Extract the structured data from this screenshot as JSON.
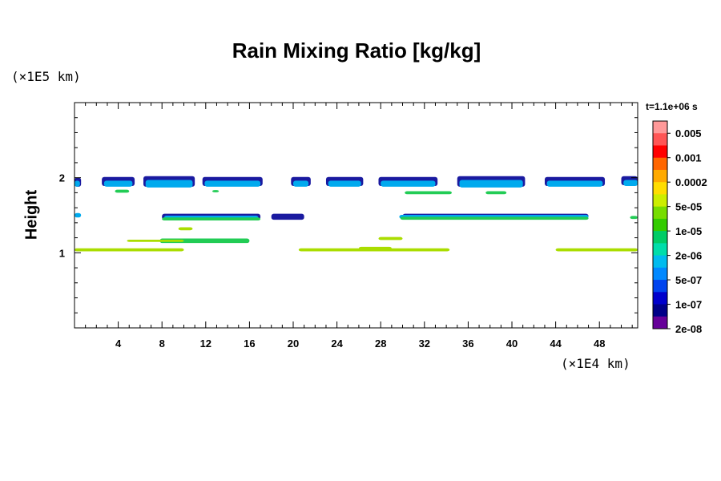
{
  "chart_data": {
    "type": "heatmap",
    "title": "Rain Mixing Ratio [kg/kg]",
    "ylabel": "Height",
    "xlabel": "",
    "x_unit": "(×1E4 km)",
    "y_unit": "(×1E5 km)",
    "time_label": "t=1.1e+06 s",
    "xlim": [
      0,
      51.5
    ],
    "ylim": [
      0,
      3
    ],
    "x_ticks": [
      4,
      8,
      12,
      16,
      20,
      24,
      28,
      32,
      36,
      40,
      44,
      48
    ],
    "x_tick_labels": [
      "4",
      "8",
      "12",
      "16",
      "20",
      "24",
      "28",
      "32",
      "36",
      "40",
      "44",
      "48"
    ],
    "y_ticks": [
      1,
      2
    ],
    "y_tick_labels": [
      "1",
      "2"
    ],
    "colorbar": {
      "labels": [
        "0.005",
        "0.001",
        "0.0002",
        "5e-05",
        "1e-05",
        "2e-06",
        "5e-07",
        "1e-07",
        "2e-08"
      ],
      "colors": [
        "#ff9999",
        "#ff5555",
        "#ff0000",
        "#ff6600",
        "#ffaa00",
        "#ffdd00",
        "#ccee00",
        "#77dd00",
        "#33cc00",
        "#00cc66",
        "#00ddaa",
        "#00bbee",
        "#0088ff",
        "#0044ee",
        "#0000cc",
        "#000088",
        "#660099"
      ]
    },
    "series": [
      {
        "level": "2e-08",
        "color": "#1a1aa0",
        "bands": [
          {
            "x0": 0.0,
            "x1": 0.6,
            "y": 1.94,
            "h": 0.12
          },
          {
            "x0": 2.5,
            "x1": 5.5,
            "y": 1.95,
            "h": 0.12
          },
          {
            "x0": 6.3,
            "x1": 11.0,
            "y": 1.95,
            "h": 0.14
          },
          {
            "x0": 11.7,
            "x1": 17.2,
            "y": 1.95,
            "h": 0.12
          },
          {
            "x0": 19.8,
            "x1": 21.6,
            "y": 1.95,
            "h": 0.12
          },
          {
            "x0": 23.0,
            "x1": 26.4,
            "y": 1.95,
            "h": 0.12
          },
          {
            "x0": 27.8,
            "x1": 33.2,
            "y": 1.95,
            "h": 0.12
          },
          {
            "x0": 35.0,
            "x1": 41.2,
            "y": 1.95,
            "h": 0.14
          },
          {
            "x0": 43.0,
            "x1": 48.5,
            "y": 1.95,
            "h": 0.12
          },
          {
            "x0": 50.0,
            "x1": 51.5,
            "y": 1.96,
            "h": 0.12
          },
          {
            "x0": 8.0,
            "x1": 17.0,
            "y": 1.48,
            "h": 0.08
          },
          {
            "x0": 18.0,
            "x1": 21.0,
            "y": 1.48,
            "h": 0.08
          },
          {
            "x0": 30.0,
            "x1": 47.0,
            "y": 1.49,
            "h": 0.06
          }
        ]
      },
      {
        "level": "5e-07",
        "color": "#00aaee",
        "bands": [
          {
            "x0": 0.0,
            "x1": 0.5,
            "y": 1.92,
            "h": 0.08
          },
          {
            "x0": 2.7,
            "x1": 5.3,
            "y": 1.92,
            "h": 0.08
          },
          {
            "x0": 6.5,
            "x1": 10.8,
            "y": 1.92,
            "h": 0.1
          },
          {
            "x0": 11.9,
            "x1": 17.0,
            "y": 1.92,
            "h": 0.08
          },
          {
            "x0": 20.0,
            "x1": 21.4,
            "y": 1.92,
            "h": 0.08
          },
          {
            "x0": 23.2,
            "x1": 26.2,
            "y": 1.92,
            "h": 0.08
          },
          {
            "x0": 28.0,
            "x1": 33.0,
            "y": 1.92,
            "h": 0.08
          },
          {
            "x0": 35.2,
            "x1": 41.0,
            "y": 1.92,
            "h": 0.1
          },
          {
            "x0": 43.2,
            "x1": 48.3,
            "y": 1.92,
            "h": 0.08
          },
          {
            "x0": 50.2,
            "x1": 51.5,
            "y": 1.93,
            "h": 0.08
          },
          {
            "x0": 0.0,
            "x1": 0.6,
            "y": 1.5,
            "h": 0.06
          },
          {
            "x0": 8.2,
            "x1": 16.8,
            "y": 1.47,
            "h": 0.05
          },
          {
            "x0": 29.7,
            "x1": 47.0,
            "y": 1.48,
            "h": 0.05
          }
        ]
      },
      {
        "level": "2e-06",
        "color": "#22cc55",
        "bands": [
          {
            "x0": 3.7,
            "x1": 5.0,
            "y": 1.82,
            "h": 0.04
          },
          {
            "x0": 12.6,
            "x1": 13.2,
            "y": 1.82,
            "h": 0.03
          },
          {
            "x0": 30.2,
            "x1": 34.5,
            "y": 1.8,
            "h": 0.04
          },
          {
            "x0": 37.6,
            "x1": 39.5,
            "y": 1.8,
            "h": 0.04
          },
          {
            "x0": 8.0,
            "x1": 17.0,
            "y": 1.45,
            "h": 0.04
          },
          {
            "x0": 29.8,
            "x1": 47.0,
            "y": 1.46,
            "h": 0.04
          },
          {
            "x0": 7.8,
            "x1": 16.0,
            "y": 1.16,
            "h": 0.06
          },
          {
            "x0": 50.8,
            "x1": 51.5,
            "y": 1.47,
            "h": 0.04
          }
        ]
      },
      {
        "level": "5e-05",
        "color": "#aadd00",
        "bands": [
          {
            "x0": 0.0,
            "x1": 10.0,
            "y": 1.04,
            "h": 0.04
          },
          {
            "x0": 20.5,
            "x1": 34.3,
            "y": 1.04,
            "h": 0.04
          },
          {
            "x0": 26.0,
            "x1": 29.0,
            "y": 1.06,
            "h": 0.04
          },
          {
            "x0": 44.0,
            "x1": 51.5,
            "y": 1.04,
            "h": 0.04
          },
          {
            "x0": 4.8,
            "x1": 10.0,
            "y": 1.16,
            "h": 0.03
          },
          {
            "x0": 9.5,
            "x1": 10.8,
            "y": 1.32,
            "h": 0.04
          },
          {
            "x0": 27.8,
            "x1": 30.0,
            "y": 1.19,
            "h": 0.04
          }
        ]
      }
    ]
  }
}
